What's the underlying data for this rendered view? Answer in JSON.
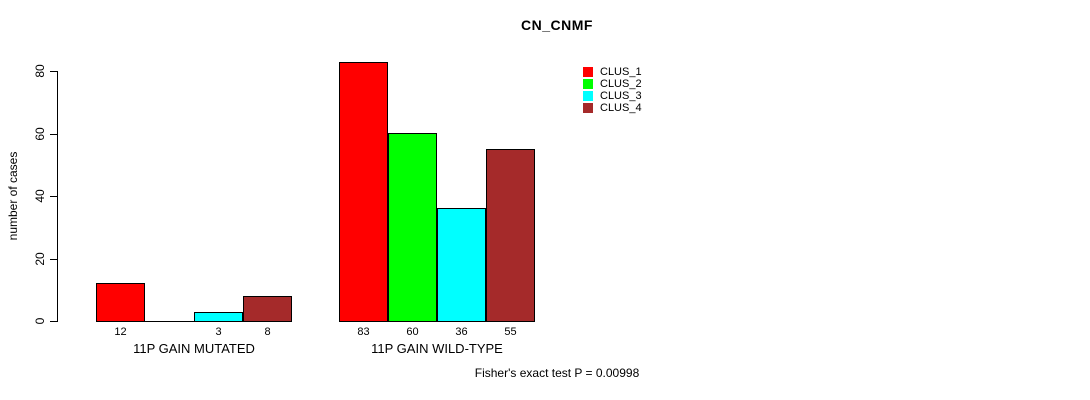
{
  "chart_data": {
    "type": "bar",
    "title": "CN_CNMF",
    "ylabel": "number of cases",
    "xlabel": "",
    "ylim": [
      0,
      80
    ],
    "yticks": [
      0,
      20,
      40,
      60,
      80
    ],
    "grid": false,
    "legend_position": "top-right",
    "background_color": "#FFFFFF",
    "bar_border_color": "#000000",
    "categories": [
      "11P GAIN MUTATED",
      "11P GAIN WILD-TYPE"
    ],
    "series": [
      {
        "name": "CLUS_1",
        "color": "#FF0000",
        "values": [
          12,
          83
        ]
      },
      {
        "name": "CLUS_2",
        "color": "#00FF00",
        "values": [
          0,
          60
        ]
      },
      {
        "name": "CLUS_3",
        "color": "#00FFFF",
        "values": [
          3,
          36
        ]
      },
      {
        "name": "CLUS_4",
        "color": "#A52A2A",
        "values": [
          8,
          55
        ]
      }
    ],
    "bar_value_labels": {
      "11P GAIN MUTATED": [
        12,
        null,
        3,
        8
      ],
      "11P GAIN WILD-TYPE": [
        83,
        60,
        36,
        55
      ]
    },
    "annotation": "Fisher's exact test P = 0.00998"
  }
}
